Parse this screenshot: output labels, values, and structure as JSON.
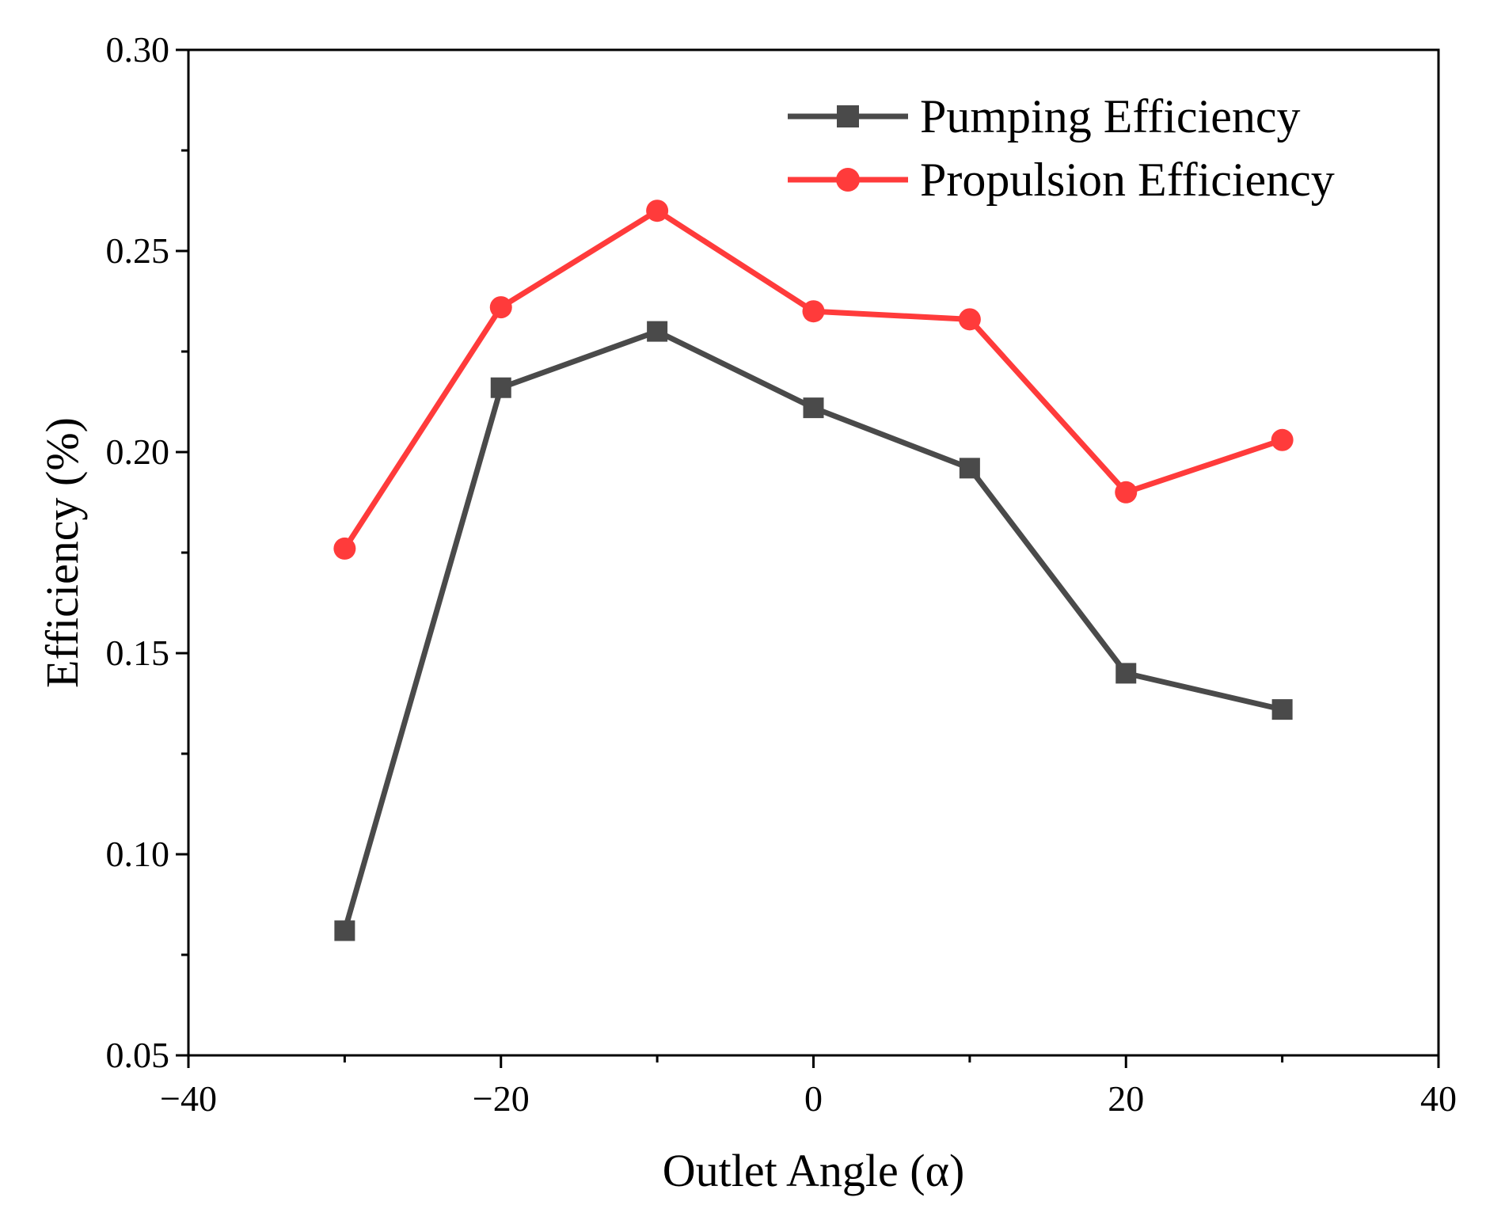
{
  "chart_data": {
    "type": "line",
    "title": "",
    "xlabel": "Outlet Angle (α)",
    "ylabel": "Efficiency (%)",
    "xlim": [
      -40,
      40
    ],
    "ylim": [
      0.05,
      0.3
    ],
    "x_ticks": [
      -40,
      -20,
      0,
      20,
      40
    ],
    "x_tick_labels": [
      "−40",
      "−20",
      "0",
      "20",
      "40"
    ],
    "x_minor_ticks": [
      -30,
      -10,
      10,
      30
    ],
    "y_ticks": [
      0.05,
      0.1,
      0.15,
      0.2,
      0.25,
      0.3
    ],
    "y_tick_labels": [
      "0.05",
      "0.10",
      "0.15",
      "0.20",
      "0.25",
      "0.30"
    ],
    "y_minor_ticks": [
      0.075,
      0.125,
      0.175,
      0.225,
      0.275
    ],
    "grid": false,
    "legend_position": "top-right",
    "x": [
      -30,
      -20,
      -10,
      0,
      10,
      20,
      30
    ],
    "series": [
      {
        "name": "Pumping Efficiency",
        "color": "#4a4a4a",
        "marker": "square",
        "values": [
          0.081,
          0.216,
          0.23,
          0.211,
          0.196,
          0.145,
          0.136
        ]
      },
      {
        "name": "Propulsion Efficiency",
        "color": "#ff3b3b",
        "marker": "circle",
        "values": [
          0.176,
          0.236,
          0.26,
          0.235,
          0.233,
          0.19,
          0.203
        ]
      }
    ]
  }
}
